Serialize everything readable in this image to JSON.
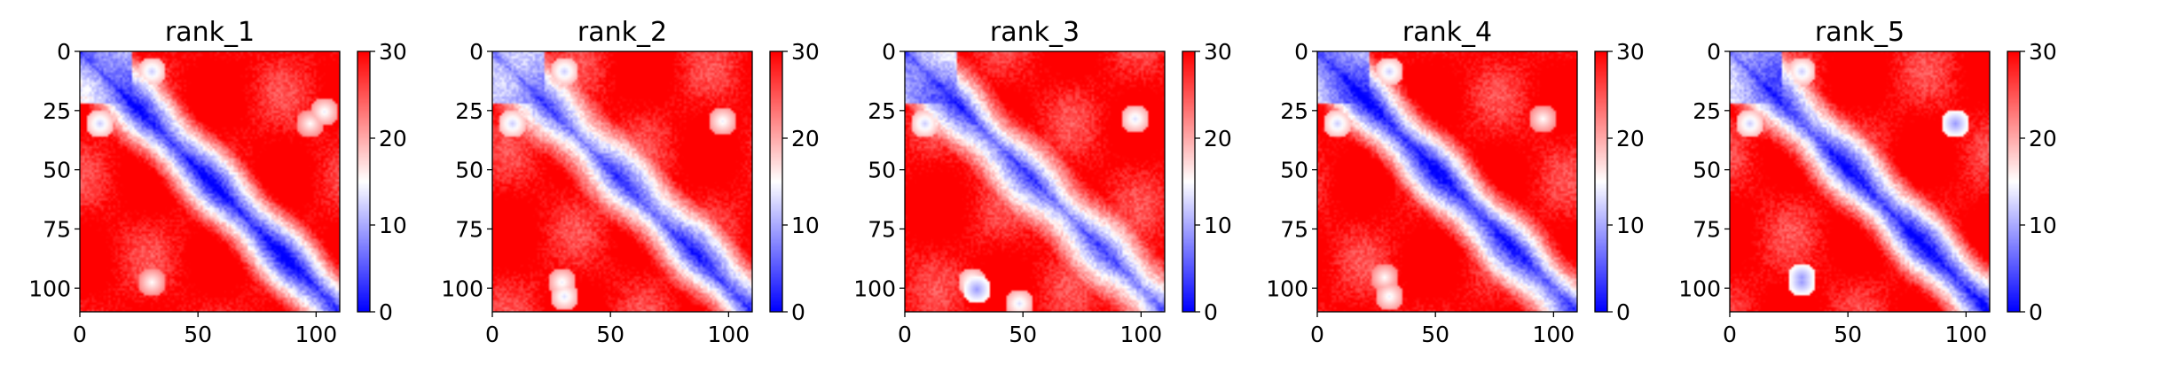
{
  "chart_data": [
    {
      "type": "heatmap",
      "title": "rank_1",
      "n": 110,
      "x_ticks": [
        0,
        50,
        100
      ],
      "y_ticks": [
        0,
        25,
        50,
        75,
        100
      ],
      "colorbar": {
        "ticks": [
          0,
          10,
          20,
          30
        ],
        "range": [
          0,
          30
        ],
        "colormap": "bwr"
      },
      "spots": [
        [
          30,
          97,
          15
        ],
        [
          97,
          30,
          15
        ],
        [
          25,
          103,
          14
        ],
        [
          30,
          8,
          12
        ],
        [
          8,
          30,
          12
        ]
      ]
    },
    {
      "type": "heatmap",
      "title": "rank_2",
      "n": 110,
      "x_ticks": [
        0,
        50,
        100
      ],
      "y_ticks": [
        0,
        25,
        50,
        75,
        100
      ],
      "colorbar": {
        "ticks": [
          0,
          10,
          20,
          30
        ],
        "range": [
          0,
          30
        ],
        "colormap": "bwr"
      },
      "spots": [
        [
          29,
          97,
          14
        ],
        [
          97,
          29,
          14
        ],
        [
          103,
          30,
          13
        ],
        [
          30,
          8,
          12
        ],
        [
          8,
          30,
          12
        ]
      ]
    },
    {
      "type": "heatmap",
      "title": "rank_3",
      "n": 110,
      "x_ticks": [
        0,
        50,
        100
      ],
      "y_ticks": [
        0,
        25,
        50,
        75,
        100
      ],
      "colorbar": {
        "ticks": [
          0,
          10,
          20,
          30
        ],
        "range": [
          0,
          30
        ],
        "colormap": "bwr"
      },
      "spots": [
        [
          28,
          97,
          13
        ],
        [
          97,
          28,
          13
        ],
        [
          100,
          30,
          9
        ],
        [
          106,
          48,
          13
        ],
        [
          30,
          8,
          12
        ]
      ]
    },
    {
      "type": "heatmap",
      "title": "rank_4",
      "n": 110,
      "x_ticks": [
        0,
        50,
        100
      ],
      "y_ticks": [
        0,
        25,
        50,
        75,
        100
      ],
      "colorbar": {
        "ticks": [
          0,
          10,
          20,
          30
        ],
        "range": [
          0,
          30
        ],
        "colormap": "bwr"
      },
      "spots": [
        [
          28,
          95,
          15
        ],
        [
          95,
          28,
          15
        ],
        [
          103,
          30,
          14
        ],
        [
          30,
          8,
          12
        ],
        [
          8,
          30,
          12
        ]
      ]
    },
    {
      "type": "heatmap",
      "title": "rank_5",
      "n": 110,
      "x_ticks": [
        0,
        50,
        100
      ],
      "y_ticks": [
        0,
        25,
        50,
        75,
        100
      ],
      "colorbar": {
        "ticks": [
          0,
          10,
          20,
          30
        ],
        "range": [
          0,
          30
        ],
        "colormap": "bwr"
      },
      "spots": [
        [
          30,
          95,
          9
        ],
        [
          95,
          30,
          9
        ],
        [
          97,
          30,
          9
        ],
        [
          30,
          8,
          12
        ],
        [
          8,
          30,
          12
        ]
      ]
    }
  ]
}
